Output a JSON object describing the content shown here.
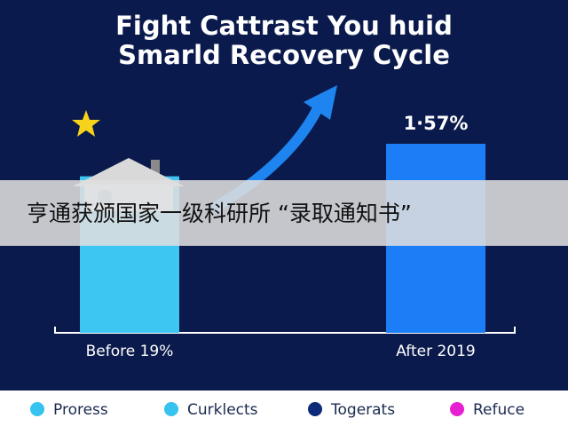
{
  "chart_data": {
    "type": "bar",
    "title": [
      "Fight Cattrast You huid",
      "Smarld Recovery Cycle"
    ],
    "categories": [
      "Before 19%",
      "After 2019"
    ],
    "values": [
      1.3,
      1.57
    ],
    "value_labels": [
      null,
      "1·57%"
    ],
    "colors": [
      "#3ec6f2",
      "#1b7ef6"
    ],
    "legend": [
      {
        "name": "Proress",
        "color": "#36c3ef"
      },
      {
        "name": "Curklects",
        "color": "#36c3ef"
      },
      {
        "name": "Togerats",
        "color": "#0e2a78"
      },
      {
        "name": "Refuce",
        "color": "#e61fd0"
      }
    ]
  },
  "overlay_text": "亨通获颁国家一级科研所 “录取通知书”"
}
